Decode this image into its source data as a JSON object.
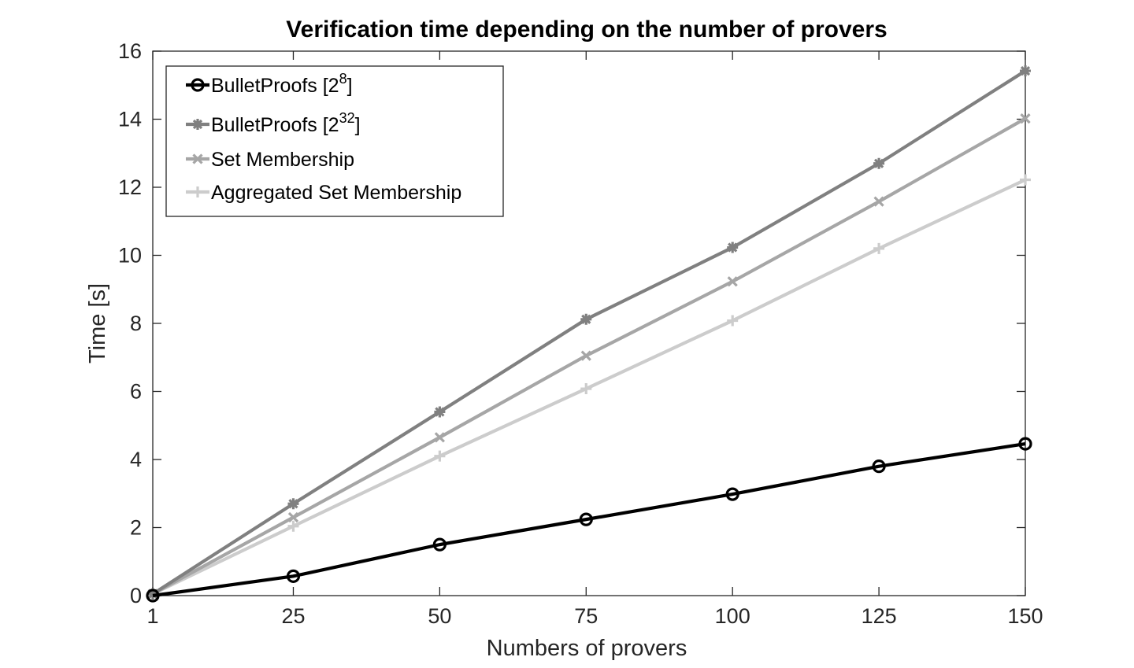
{
  "chart_data": {
    "type": "line",
    "title": "Verification time depending on the number of provers",
    "xlabel": "Numbers of provers",
    "ylabel": "Time [s]",
    "x": [
      1,
      25,
      50,
      75,
      100,
      125,
      150
    ],
    "xticks": [
      "1",
      "25",
      "50",
      "75",
      "100",
      "125",
      "150"
    ],
    "yticks": [
      "0",
      "2",
      "4",
      "6",
      "8",
      "10",
      "12",
      "14",
      "16"
    ],
    "xlim": [
      1,
      150
    ],
    "ylim": [
      0,
      16
    ],
    "grid": false,
    "legend_position": "top-left",
    "series": [
      {
        "name": "BulletProofs [2^8]",
        "legend_base": "BulletProofs [2",
        "legend_exp": "8",
        "legend_tail": "]",
        "color": "#000000",
        "marker": "circle",
        "values": [
          0.0,
          0.57,
          1.5,
          2.24,
          2.98,
          3.8,
          4.46
        ]
      },
      {
        "name": "BulletProofs [2^32]",
        "legend_base": "BulletProofs [2",
        "legend_exp": "32",
        "legend_tail": "]",
        "color": "#808080",
        "marker": "asterisk",
        "values": [
          0.05,
          2.7,
          5.4,
          8.12,
          10.23,
          12.7,
          15.42
        ]
      },
      {
        "name": "Set Membership",
        "legend_base": "Set Membership",
        "legend_exp": "",
        "legend_tail": "",
        "color": "#a6a6a6",
        "marker": "x",
        "values": [
          0.05,
          2.3,
          4.65,
          7.05,
          9.23,
          11.58,
          14.02
        ]
      },
      {
        "name": "Aggregated Set Membership",
        "legend_base": "Aggregated Set Membership",
        "legend_exp": "",
        "legend_tail": "",
        "color": "#cccccc",
        "marker": "plus",
        "values": [
          0.05,
          2.04,
          4.1,
          6.08,
          8.08,
          10.2,
          12.22
        ]
      }
    ]
  }
}
